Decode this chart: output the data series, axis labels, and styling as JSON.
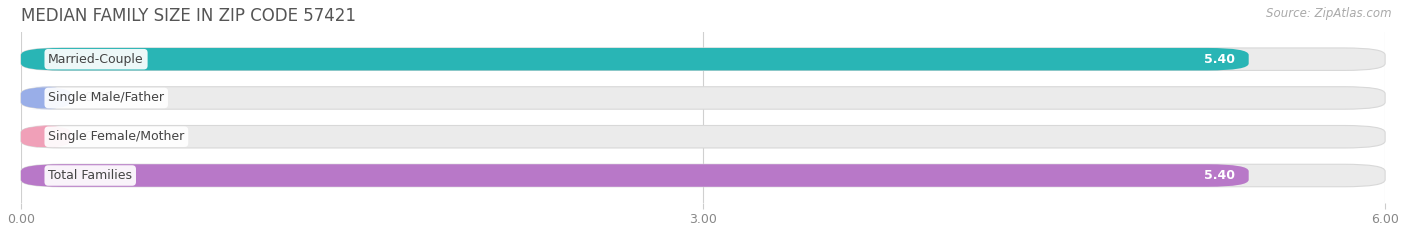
{
  "title": "MEDIAN FAMILY SIZE IN ZIP CODE 57421",
  "source": "Source: ZipAtlas.com",
  "categories": [
    "Married-Couple",
    "Single Male/Father",
    "Single Female/Mother",
    "Total Families"
  ],
  "values": [
    5.4,
    0.0,
    0.0,
    5.4
  ],
  "bar_colors": [
    "#29b5b5",
    "#99aee8",
    "#f0a0b8",
    "#b878c8"
  ],
  "label_colors": [
    "white",
    "#555555",
    "#555555",
    "white"
  ],
  "xlim": [
    0,
    6.0
  ],
  "xticks": [
    0.0,
    3.0,
    6.0
  ],
  "xtick_labels": [
    "0.00",
    "3.00",
    "6.00"
  ],
  "background_color": "#ffffff",
  "bar_background_color": "#ebebeb",
  "title_fontsize": 12,
  "source_fontsize": 8.5,
  "bar_label_fontsize": 9,
  "category_fontsize": 9,
  "bar_height": 0.58,
  "figsize": [
    14.06,
    2.33
  ],
  "dpi": 100
}
